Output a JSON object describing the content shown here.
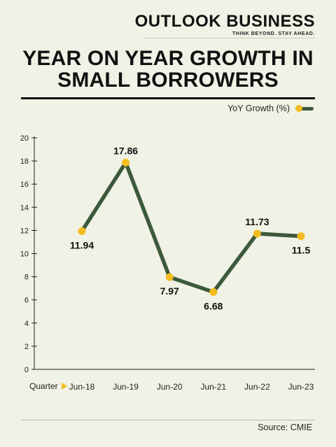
{
  "brand": {
    "name": "OUTLOOK BUSINESS",
    "tagline": "THINK BEYOND. STAY AHEAD."
  },
  "title_line1": "YEAR ON YEAR GROWTH IN",
  "title_line2": "SMALL BORROWERS",
  "x_axis_caption": "Quarter",
  "source": "Source: CMIE",
  "colors": {
    "background": "#f1f2e6",
    "line": "#3c5a3a",
    "marker": "#f3bd1e",
    "text": "#111111"
  },
  "chart_data": {
    "type": "line",
    "title": "YEAR ON YEAR GROWTH IN SMALL BORROWERS",
    "xlabel": "Quarter",
    "ylabel": "",
    "categories": [
      "Jun-18",
      "Jun-19",
      "Jun-20",
      "Jun-21",
      "Jun-22",
      "Jun-23"
    ],
    "series": [
      {
        "name": "YoY Growth (%)",
        "values": [
          11.94,
          17.86,
          7.97,
          6.68,
          11.73,
          11.5
        ]
      }
    ],
    "data_labels": [
      "11.94",
      "17.86",
      "7.97",
      "6.68",
      "11.73",
      "11.5"
    ],
    "ylim": [
      0,
      20
    ],
    "yticks": [
      0,
      2,
      4,
      6,
      8,
      10,
      12,
      14,
      16,
      18,
      20
    ],
    "grid": false,
    "legend_position": "top-right"
  }
}
